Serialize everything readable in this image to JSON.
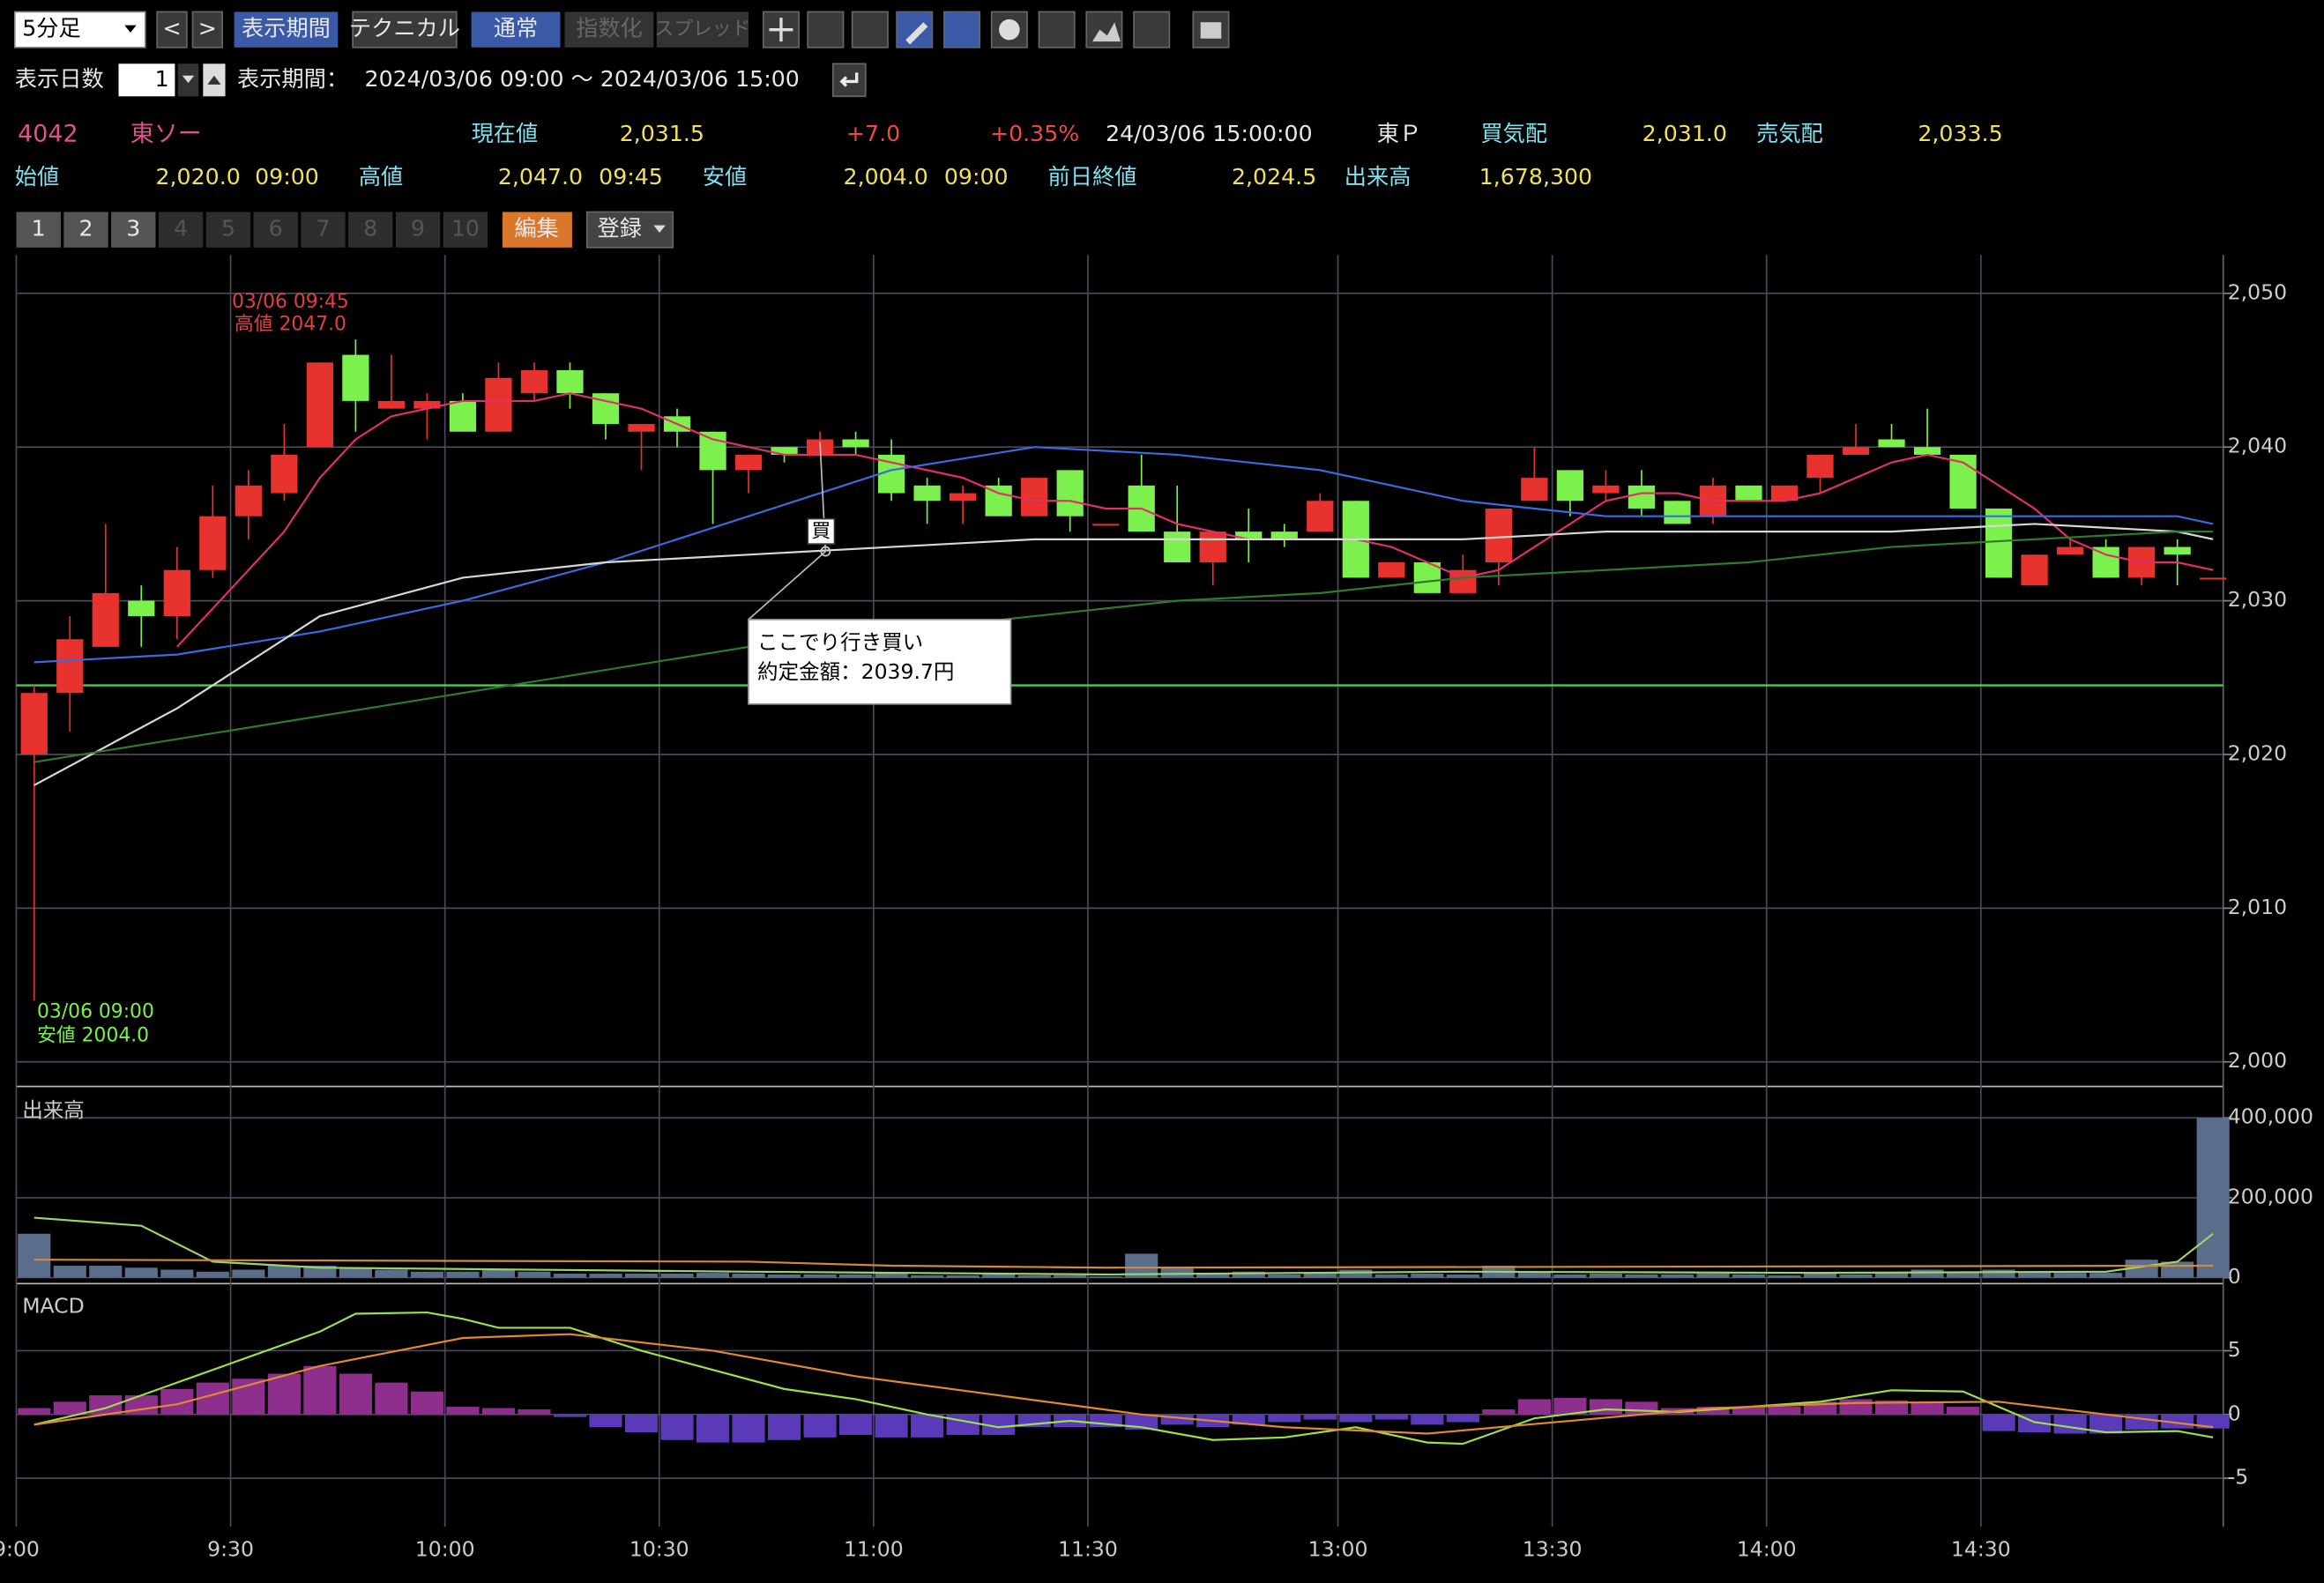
{
  "toolbar": {
    "period_select": "5分足",
    "prev": "<",
    "next": ">",
    "buttons": [
      "表示期間",
      "テクニカル",
      "通常",
      "指数化",
      "スプレッド"
    ]
  },
  "display": {
    "days_label": "表示日数",
    "days": "1",
    "period_label": "表示期間：",
    "period": "2024/03/06 09:00 〜 2024/03/06 15:00"
  },
  "quote": {
    "code": "4042",
    "name": "東ソー",
    "current_label": "現在値",
    "current": "2,031.5",
    "change": "+7.0",
    "change_pct": "+0.35%",
    "time": "24/03/06 15:00:00",
    "market": "東Ｐ",
    "bid_label": "買気配",
    "bid": "2,031.0",
    "ask_label": "売気配",
    "ask": "2,033.5",
    "open_label": "始値",
    "open": "2,020.0",
    "open_time": "09:00",
    "high_label": "高値",
    "high": "2,047.0",
    "high_time": "09:45",
    "low_label": "安値",
    "low": "2,004.0",
    "low_time": "09:00",
    "prev_close_label": "前日終値",
    "prev_close": "2,024.5",
    "volume_label": "出来高",
    "volume": "1,678,300"
  },
  "tabs": [
    "1",
    "2",
    "3",
    "4",
    "5",
    "6",
    "7",
    "8",
    "9",
    "10"
  ],
  "edit": "編集",
  "register": "登録",
  "chart_data": [
    {
      "type": "candlestick",
      "categories": [
        "9:00",
        null,
        null,
        null,
        null,
        null,
        "9:30",
        null,
        null,
        null,
        null,
        null,
        "10:00",
        null,
        null,
        null,
        null,
        null,
        "10:30",
        null,
        null,
        null,
        null,
        null,
        "11:00",
        null,
        null,
        null,
        null,
        null,
        "11:30",
        null,
        null,
        null,
        null,
        null,
        null,
        "13:00",
        null,
        null,
        null,
        null,
        null,
        "13:30",
        null,
        null,
        null,
        null,
        null,
        "14:00",
        null,
        null,
        null,
        null,
        null,
        "14:30",
        null,
        null,
        null,
        null,
        null,
        null
      ],
      "open": [
        2020,
        2024,
        2027,
        2030,
        2029,
        2032,
        2035.5,
        2037,
        2040,
        2046,
        2042.5,
        2042.5,
        2043,
        2041,
        2043.5,
        2045,
        2043.5,
        2041,
        2042,
        2041,
        2038.5,
        2040,
        2039.5,
        2040.5,
        2039.5,
        2037.5,
        2036.5,
        2037.5,
        2035.5,
        2038.5,
        2035,
        2037.5,
        2034.5,
        2032.5,
        2034.5,
        2034.5,
        2034.5,
        2036.5,
        2031.5,
        2032.5,
        2030.5,
        2032.5,
        2036.5,
        2038.5,
        2037,
        2037.5,
        2036.5,
        2035.5,
        2037.5,
        2036.5,
        2038,
        2039.5,
        2040.5,
        2040,
        2039.5,
        2036,
        2031,
        2033,
        2033.5,
        2031.5,
        2033.5,
        2031.5
      ],
      "high": [
        2024.5,
        2029,
        2035,
        2031,
        2033.5,
        2037.5,
        2038.5,
        2041.5,
        2045.5,
        2047,
        2046,
        2043.5,
        2043.5,
        2045.5,
        2045.5,
        2045.5,
        2043.5,
        2041.5,
        2042.5,
        2041,
        2039.5,
        2040,
        2041,
        2041,
        2040.5,
        2038,
        2037.5,
        2038,
        2038,
        2038.5,
        2035,
        2039.5,
        2037.5,
        2034.5,
        2036,
        2035,
        2037,
        2036.5,
        2032.5,
        2032.5,
        2033,
        2036,
        2040,
        2038.5,
        2038.5,
        2038.5,
        2036.5,
        2038,
        2037.5,
        2037.5,
        2039.5,
        2041.5,
        2041.5,
        2042.5,
        2039.5,
        2036,
        2033,
        2034,
        2034,
        2033.5,
        2034,
        2031.5
      ],
      "low": [
        2004,
        2021.5,
        2027,
        2027,
        2027.5,
        2031.5,
        2034,
        2036.5,
        2040,
        2041,
        2042.5,
        2040.5,
        2041,
        2041,
        2043,
        2042.5,
        2040.5,
        2038.5,
        2040,
        2035,
        2037,
        2039,
        2039.5,
        2039.5,
        2036.5,
        2035,
        2035,
        2035.5,
        2035.5,
        2034.5,
        2035,
        2034.5,
        2032.5,
        2031,
        2032.5,
        2033.5,
        2034.5,
        2031.5,
        2031.5,
        2030.5,
        2030.5,
        2031,
        2036.5,
        2035.5,
        2036.5,
        2035.5,
        2035,
        2035,
        2036.5,
        2036.5,
        2037,
        2039.5,
        2040,
        2039.5,
        2036,
        2031.5,
        2031,
        2033,
        2031.5,
        2031,
        2031,
        2031.5
      ],
      "close": [
        2024,
        2027.5,
        2030.5,
        2029,
        2032,
        2035.5,
        2037.5,
        2039.5,
        2045.5,
        2043,
        2043,
        2043,
        2041,
        2044.5,
        2045,
        2043.5,
        2041.5,
        2041.5,
        2041,
        2038.5,
        2039.5,
        2039.5,
        2040.5,
        2040,
        2037,
        2036.5,
        2037,
        2035.5,
        2038,
        2035.5,
        2035,
        2034.5,
        2032.5,
        2034.5,
        2034,
        2034,
        2036.5,
        2031.5,
        2032.5,
        2030.5,
        2032,
        2036,
        2038,
        2036.5,
        2037.5,
        2036,
        2035,
        2037.5,
        2036.5,
        2037.5,
        2039.5,
        2040,
        2040,
        2039.5,
        2036,
        2031.5,
        2033,
        2033.5,
        2031.5,
        2033.5,
        2033,
        2031.5
      ],
      "up_color": "#e8322e",
      "down_color": "#7cf04c",
      "lines": [
        {
          "color": "#e0306a",
          "values": [
            null,
            null,
            null,
            null,
            2027,
            2029.5,
            2032,
            2034.5,
            2038,
            2040.5,
            2042,
            2042.5,
            2043,
            2043,
            2043,
            2043.5,
            2043,
            2042.5,
            2041.5,
            2040.5,
            2040,
            2039.5,
            2039.5,
            2039.5,
            2039,
            2038.5,
            2038,
            2037,
            2036.5,
            2036.5,
            2036,
            2036,
            2035,
            2034.5,
            2034,
            2034,
            2034,
            2034,
            2033.5,
            2032.5,
            2031.5,
            2032,
            2033.5,
            2035,
            2036.5,
            2037,
            2037,
            2036.5,
            2036.5,
            2036.5,
            2037,
            2038,
            2039,
            2039.5,
            2039,
            2037.5,
            2036,
            2034,
            2033,
            2032.5,
            2032.5,
            2032
          ]
        },
        {
          "color": "#3a6ae0",
          "x": [
            0,
            4,
            8,
            12,
            16,
            20,
            24,
            28,
            32,
            36,
            40,
            44,
            48,
            52,
            56,
            60,
            61
          ],
          "values": [
            2026,
            2026.5,
            2028,
            2030,
            2032.5,
            2035.5,
            2038.5,
            2040,
            2039.5,
            2038.5,
            2036.5,
            2035.5,
            2035.5,
            2035.5,
            2035.5,
            2035.5,
            2035
          ]
        },
        {
          "color": "#d8d8d8",
          "x": [
            0,
            4,
            8,
            12,
            16,
            20,
            24,
            28,
            32,
            36,
            40,
            44,
            48,
            52,
            56,
            60,
            61
          ],
          "values": [
            2018,
            2023,
            2029,
            2031.5,
            2032.5,
            2033,
            2033.5,
            2034,
            2034,
            2034,
            2034,
            2034.5,
            2034.5,
            2034.5,
            2035,
            2034.5,
            2034
          ]
        },
        {
          "color": "#2f7a2f",
          "x": [
            0,
            4,
            8,
            12,
            16,
            20,
            24,
            28,
            32,
            36,
            40,
            44,
            48,
            52,
            56,
            60,
            61
          ],
          "values": [
            2019.5,
            2021,
            2022.5,
            2024,
            2025.5,
            2027,
            2028,
            2029,
            2030,
            2030.5,
            2031.5,
            2032,
            2032.5,
            2033.5,
            2034,
            2034.5,
            2034.5
          ]
        }
      ],
      "reference_line": 2024.5,
      "reference_color": "#55c855",
      "ylim": [
        1998.4,
        2052.5
      ],
      "yticks": [
        {
          "value": 2000,
          "label": "2,000"
        },
        {
          "value": 2010,
          "label": "2,010"
        },
        {
          "value": 2020,
          "label": "2,020"
        },
        {
          "value": 2030,
          "label": "2,030"
        },
        {
          "value": 2040,
          "label": "2,040"
        },
        {
          "value": 2050,
          "label": "2,050"
        }
      ],
      "grid": true,
      "high_annotation": [
        "03/06 09:45",
        "高値 2047.0"
      ],
      "low_annotation": [
        "03/06 09:00",
        "安値 2004.0"
      ],
      "trade": {
        "marker": "買",
        "lines": [
          "ここでり行き買い",
          "約定金額：2039.7円"
        ]
      }
    },
    {
      "type": "bar",
      "title": "出来高",
      "color": "#5a6e8c",
      "values": [
        110000,
        30000,
        30000,
        25000,
        20000,
        15000,
        20000,
        30000,
        30000,
        25000,
        20000,
        15000,
        15000,
        20000,
        15000,
        10000,
        10000,
        10000,
        10000,
        12000,
        10000,
        8000,
        8000,
        8000,
        10000,
        6000,
        6000,
        8000,
        6000,
        6000,
        3000,
        60000,
        25000,
        12000,
        15000,
        8000,
        12000,
        20000,
        8000,
        10000,
        8000,
        30000,
        12000,
        8000,
        10000,
        8000,
        8000,
        10000,
        8000,
        6000,
        10000,
        8000,
        12000,
        20000,
        15000,
        20000,
        15000,
        12000,
        12000,
        45000,
        40000,
        400000
      ],
      "lines": [
        {
          "color": "#9bd36a",
          "x": [
            0,
            3,
            5,
            8,
            20,
            30,
            40,
            50,
            58,
            60,
            61
          ],
          "values": [
            150000,
            130000,
            40000,
            25000,
            15000,
            8000,
            15000,
            12000,
            15000,
            40000,
            110000
          ]
        },
        {
          "color": "#d08a3a",
          "x": [
            0,
            20,
            24,
            30,
            61
          ],
          "values": [
            45000,
            40000,
            30000,
            25000,
            30000
          ]
        }
      ],
      "ylim": [
        0,
        460000
      ],
      "yticks": [
        0,
        {
          "value": 200000,
          "label": "200,000"
        },
        {
          "value": 400000,
          "label": "400,000"
        }
      ],
      "grid": true
    },
    {
      "type": "bar",
      "title": "MACD",
      "up_color": "#8e2f8e",
      "down_color": "#5a3ab8",
      "values": [
        0.5,
        1,
        1.5,
        1.5,
        2,
        2.5,
        2.8,
        3.2,
        3.8,
        3.2,
        2.5,
        1.8,
        0.6,
        0.5,
        0.4,
        -0.2,
        -1,
        -1.4,
        -2,
        -2.2,
        -2.2,
        -2,
        -1.8,
        -1.6,
        -1.8,
        -1.8,
        -1.6,
        -1.6,
        -1,
        -1,
        -1,
        -1.2,
        -0.8,
        -1,
        -0.8,
        -0.6,
        -0.4,
        -0.6,
        -0.4,
        -0.8,
        -0.6,
        0.4,
        1.2,
        1.3,
        1.2,
        1,
        0.5,
        0.6,
        0.6,
        0.6,
        1,
        1.2,
        1.1,
        1,
        0.6,
        -1.3,
        -1.4,
        -1.5,
        -1.5,
        -1.2,
        -1.1,
        -1.1
      ],
      "lines": [
        {
          "color": "#9be04a",
          "x": [
            0,
            2,
            4,
            6,
            8,
            9,
            11,
            12,
            13,
            15,
            17,
            19,
            21,
            23,
            25,
            27,
            29,
            31,
            33,
            35,
            37,
            39,
            40,
            42,
            44,
            46,
            48,
            50,
            52,
            54,
            56,
            58,
            60,
            61
          ],
          "values": [
            -0.8,
            0.5,
            2.5,
            4.5,
            6.5,
            7.9,
            8,
            7.5,
            6.8,
            6.8,
            5,
            3.5,
            2,
            1.2,
            0,
            -1,
            -0.5,
            -1,
            -2,
            -1.8,
            -1,
            -2.2,
            -2.3,
            -0.3,
            0.4,
            0.2,
            0.6,
            1,
            1.9,
            1.8,
            -0.6,
            -1.4,
            -1.3,
            -1.8
          ]
        },
        {
          "color": "#e08a30",
          "x": [
            0,
            4,
            8,
            12,
            15,
            19,
            23,
            27,
            31,
            35,
            39,
            43,
            47,
            51,
            55,
            58,
            61
          ],
          "values": [
            -0.8,
            0.8,
            3.8,
            6,
            6.3,
            5,
            3,
            1.5,
            0,
            -1,
            -1.5,
            -0.5,
            0.5,
            0.9,
            1,
            0,
            -1
          ]
        }
      ],
      "ylim": [
        -8.8,
        9.8
      ],
      "yticks": [
        -5,
        0,
        5
      ],
      "grid": true
    }
  ]
}
